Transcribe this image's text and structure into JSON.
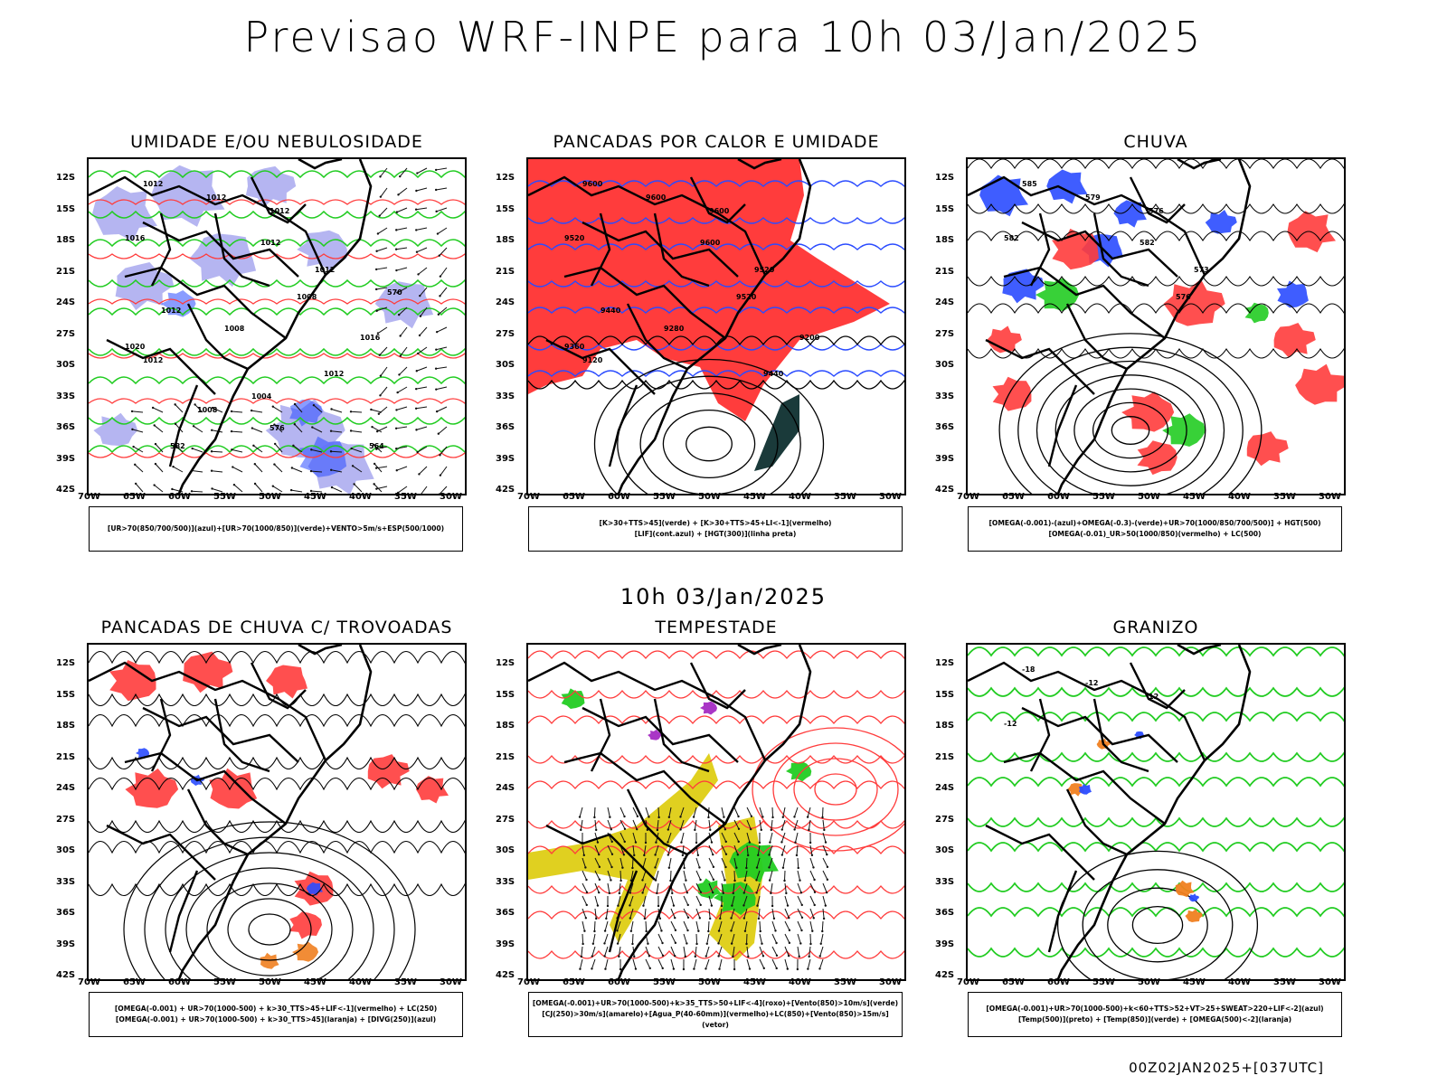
{
  "title": "Previsao WRF-INPE  para 10h 03/Jan/2025",
  "subtitle": "10h 03/Jan/2025",
  "footer": "00Z02JAN2025+[037UTC]",
  "lat_labels": [
    "12S",
    "15S",
    "18S",
    "21S",
    "24S",
    "27S",
    "30S",
    "33S",
    "36S",
    "39S",
    "42S"
  ],
  "lon_labels": [
    "70W",
    "65W",
    "60W",
    "55W",
    "50W",
    "45W",
    "40W",
    "35W",
    "30W"
  ],
  "panels": [
    {
      "title": "UMIDADE E/OU NEBULOSIDADE",
      "legend": [
        "[UR>70(850/700/500)](azul)+[UR>70(1000/850)](verde)+VENTO>5m/s+ESP(500/1000)"
      ],
      "labels": [
        "1012",
        "1012",
        "1012",
        "1016",
        "1012",
        "1012",
        "1008",
        "1012",
        "1008",
        "1016",
        "1020",
        "1012",
        "1012",
        "1004",
        "1008",
        "570",
        "576",
        "582",
        "564"
      ]
    },
    {
      "title": "PANCADAS POR CALOR E UMIDADE",
      "legend": [
        "[K>30+TTS>45](verde) + [K>30+TTS>45+LI<-1](vermelho)",
        "[LIF](cont.azul) + [HGT(300)](linha preta)"
      ],
      "labels": [
        "9600",
        "9600",
        "9600",
        "9520",
        "9600",
        "9520",
        "9520",
        "9440",
        "9280",
        "9200",
        "9360",
        "9120",
        "9440"
      ]
    },
    {
      "title": "CHUVA",
      "legend": [
        "[OMEGA(-0.001)-(azul)+OMEGA(-0.3)-(verde)+UR>70(1000/850/700/500)] + HGT(500)",
        "[OMEGA(-0.01)_UR>50(1000/850)(vermelho) + LC(500)"
      ],
      "labels": [
        "585",
        "579",
        "576",
        "582",
        "582",
        "573",
        "576"
      ]
    },
    {
      "title": "PANCADAS DE CHUVA C/ TROVOADAS",
      "legend": [
        "[OMEGA(-0.001) + UR>70(1000-500) + k>30_TTS>45+LIF<-1](vermelho) + LC(250)",
        "[OMEGA(-0.001) + UR>70(1000-500) + k>30_TTS>45](laranja) + [DIVG(250)](azul)"
      ],
      "labels": []
    },
    {
      "title": "TEMPESTADE",
      "legend": [
        "[OMEGA(-0.001)+UR>70(1000-500)+k>35_TTS>50+LIF<-4](roxo)+[Vento(850)>10m/s](verde)",
        "[CJ(250)>30m/s](amarelo)+[Agua_P(40-60mm)](vermelho)+LC(850)+[Vento(850)>15m/s](vetor)"
      ],
      "labels": []
    },
    {
      "title": "GRANIZO",
      "legend": [
        "[OMEGA(-0.001)+UR>70(1000-500)+k<60+TTS>52+VT>25+SWEAT>220+LIF<-2](azul)",
        "[Temp(500)](preto) + [Temp(850)](verde) + [OMEGA(500)<-2](laranja)"
      ],
      "labels": [
        "-18",
        "-12",
        "12",
        "-12"
      ]
    }
  ],
  "colors": {
    "red": "#ff3c3c",
    "blue": "#2a4bff",
    "green": "#22cc22",
    "lavender": "#a8a8ee",
    "yellow": "#e0d020",
    "orange": "#f08020",
    "purple": "#a020c0",
    "darkteal": "#1a3a3a"
  }
}
